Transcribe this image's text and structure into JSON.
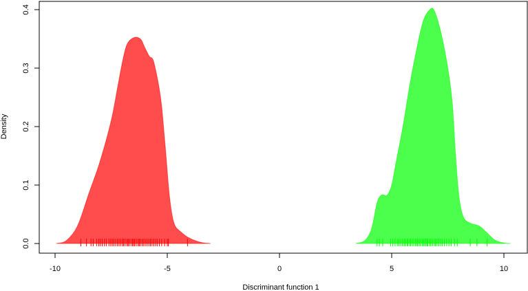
{
  "chart_data": {
    "type": "area",
    "title": "",
    "xlabel": "Discriminant function 1",
    "ylabel": "Density",
    "xlim": [
      -10.7,
      11.0
    ],
    "ylim": [
      -0.016,
      0.415
    ],
    "xticks": [
      -10,
      -5,
      0,
      5,
      10
    ],
    "xtick_labels": [
      "-10",
      "-5",
      "0",
      "5",
      "10"
    ],
    "yticks": [
      0.0,
      0.1,
      0.2,
      0.3,
      0.4
    ],
    "ytick_labels": [
      "0.0",
      "0.1",
      "0.2",
      "0.3",
      "0.4"
    ],
    "grid": false,
    "series": [
      {
        "color": "#ff0000",
        "opacity": 0.7,
        "x": [
          -9.95,
          -9.5,
          -9.0,
          -8.5,
          -8.0,
          -7.5,
          -7.2,
          -7.0,
          -6.8,
          -6.5,
          -6.2,
          -6.0,
          -5.8,
          -5.6,
          -5.3,
          -5.1,
          -4.9,
          -4.7,
          -4.4,
          -4.0,
          -3.5,
          -3.07
        ],
        "y": [
          0,
          0.005,
          0.03,
          0.085,
          0.14,
          0.21,
          0.27,
          0.31,
          0.34,
          0.352,
          0.35,
          0.335,
          0.32,
          0.31,
          0.25,
          0.17,
          0.08,
          0.035,
          0.02,
          0.009,
          0.002,
          0
        ],
        "rug": [
          -8.85,
          -8.6,
          -8.4,
          -8.3,
          -8.15,
          -8.05,
          -7.98,
          -7.9,
          -7.8,
          -7.72,
          -7.6,
          -7.52,
          -7.45,
          -7.38,
          -7.3,
          -7.22,
          -7.15,
          -7.08,
          -7.0,
          -6.95,
          -6.88,
          -6.8,
          -6.75,
          -6.7,
          -6.62,
          -6.55,
          -6.5,
          -6.45,
          -6.38,
          -6.3,
          -6.25,
          -6.2,
          -6.12,
          -6.05,
          -5.98,
          -5.9,
          -5.82,
          -5.75,
          -5.68,
          -5.6,
          -5.52,
          -5.45,
          -5.35,
          -5.25,
          -5.12,
          -5.0,
          -4.95,
          -4.1
        ]
      },
      {
        "color": "#00ff00",
        "opacity": 0.7,
        "x": [
          3.4,
          3.8,
          4.1,
          4.35,
          4.55,
          4.8,
          5.0,
          5.2,
          5.5,
          5.8,
          6.1,
          6.4,
          6.7,
          6.9,
          7.2,
          7.5,
          7.7,
          7.85,
          8.0,
          8.2,
          8.5,
          8.9,
          9.2,
          9.6,
          10.0,
          10.3
        ],
        "y": [
          0,
          0.005,
          0.025,
          0.07,
          0.083,
          0.083,
          0.1,
          0.14,
          0.2,
          0.27,
          0.33,
          0.38,
          0.4,
          0.398,
          0.36,
          0.3,
          0.24,
          0.15,
          0.08,
          0.045,
          0.035,
          0.03,
          0.02,
          0.006,
          0.001,
          0
        ],
        "rug": [
          4.35,
          4.45,
          4.6,
          4.95,
          5.05,
          5.15,
          5.25,
          5.32,
          5.4,
          5.48,
          5.55,
          5.6,
          5.68,
          5.72,
          5.8,
          5.85,
          5.92,
          5.98,
          6.05,
          6.1,
          6.15,
          6.22,
          6.28,
          6.35,
          6.4,
          6.45,
          6.52,
          6.58,
          6.62,
          6.7,
          6.75,
          6.82,
          6.9,
          6.95,
          7.02,
          7.1,
          7.18,
          7.25,
          7.35,
          7.45,
          7.55,
          7.65,
          7.8,
          7.92,
          8.5,
          8.8,
          9.25
        ]
      }
    ]
  }
}
